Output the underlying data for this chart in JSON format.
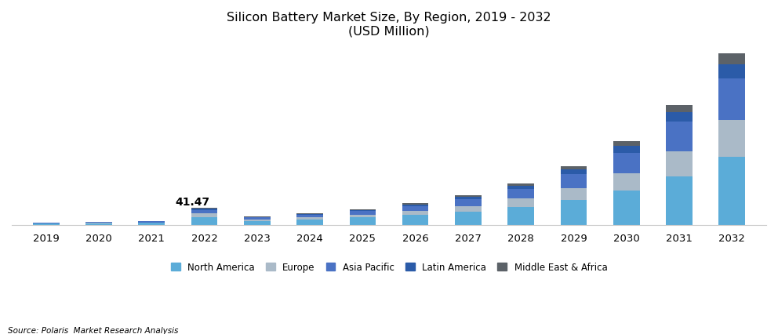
{
  "title_line1": "Silicon Battery Market Size, By Region, 2019 - 2032",
  "title_line2": "(USD Million)",
  "source": "Source: Polaris  Market Research Analysis",
  "years": [
    2019,
    2020,
    2021,
    2022,
    2023,
    2024,
    2025,
    2026,
    2027,
    2028,
    2029,
    2030,
    2031,
    2032
  ],
  "regions": [
    "North America",
    "Europe",
    "Asia Pacific",
    "Latin America",
    "Middle East & Africa"
  ],
  "colors": [
    "#5BACD8",
    "#AABAC8",
    "#4A72C4",
    "#2B5BA8",
    "#5C6268"
  ],
  "annotation_text": "41.47",
  "annotation_year": 2022,
  "data": {
    "North America": [
      3.5,
      4.2,
      5.5,
      20.0,
      10.5,
      14.0,
      18.5,
      24.5,
      32.0,
      44.0,
      60.0,
      82.0,
      115.0,
      162.0
    ],
    "Europe": [
      1.0,
      1.2,
      1.5,
      8.0,
      3.5,
      5.0,
      7.0,
      9.5,
      13.5,
      19.0,
      28.0,
      41.0,
      60.0,
      87.0
    ],
    "Asia Pacific": [
      1.5,
      1.8,
      2.2,
      8.5,
      4.5,
      6.5,
      8.5,
      11.5,
      16.0,
      22.5,
      33.0,
      48.0,
      69.0,
      98.0
    ],
    "Latin America": [
      0.4,
      0.5,
      0.6,
      2.5,
      1.3,
      1.8,
      2.5,
      3.5,
      5.0,
      7.0,
      10.5,
      15.5,
      23.0,
      33.0
    ],
    "Middle East & Africa": [
      0.3,
      0.4,
      0.5,
      2.47,
      1.0,
      1.4,
      2.0,
      2.7,
      3.8,
      5.5,
      8.0,
      11.5,
      17.0,
      25.0
    ]
  },
  "ylim": [
    0,
    420
  ],
  "background_color": "#FFFFFF",
  "bar_width": 0.5,
  "title_fontsize": 11.5,
  "tick_fontsize": 9.5,
  "legend_fontsize": 8.5
}
